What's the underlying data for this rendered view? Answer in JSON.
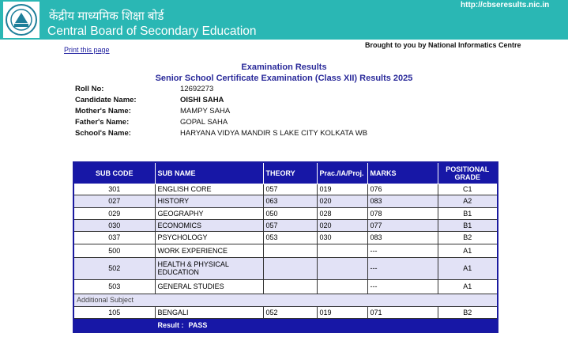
{
  "header": {
    "hindi_title": "केंद्रीय माध्यमिक शिक्षा बोर्ड",
    "title": "Central Board of Secondary Education",
    "url": "http://cbseresults.nic.in"
  },
  "print_link": "Print this page",
  "credit": "Brought to you by National Informatics Centre",
  "results": {
    "heading": "Examination Results",
    "subheading": "Senior School Certificate Examination (Class XII) Results 2025"
  },
  "student": [
    {
      "label": "Roll No:",
      "value": "12692273"
    },
    {
      "label": "Candidate Name:",
      "value": "OISHI SAHA"
    },
    {
      "label": "Mother's Name:",
      "value": "MAMPY SAHA"
    },
    {
      "label": "Father's Name:",
      "value": "GOPAL SAHA"
    },
    {
      "label": "School's Name:",
      "value": "HARYANA VIDYA MANDIR S LAKE CITY KOLKATA WB"
    }
  ],
  "table": {
    "columns": [
      "SUB CODE",
      "SUB NAME",
      "THEORY",
      "Prac./IA/Proj.",
      "MARKS",
      "POSITIONAL GRADE"
    ],
    "rows": [
      {
        "code": "301",
        "name": "ENGLISH CORE",
        "theory": "057",
        "practical": "019",
        "marks": "076",
        "grade": "C1"
      },
      {
        "code": "027",
        "name": "HISTORY",
        "theory": "063",
        "practical": "020",
        "marks": "083",
        "grade": "A2"
      },
      {
        "code": "029",
        "name": "GEOGRAPHY",
        "theory": "050",
        "practical": "028",
        "marks": "078",
        "grade": "B1"
      },
      {
        "code": "030",
        "name": "ECONOMICS",
        "theory": "057",
        "practical": "020",
        "marks": "077",
        "grade": "B1"
      },
      {
        "code": "037",
        "name": "PSYCHOLOGY",
        "theory": "053",
        "practical": "030",
        "marks": "083",
        "grade": "B2"
      },
      {
        "code": "500",
        "name": "WORK EXPERIENCE",
        "marks": "---",
        "grade": "A1"
      },
      {
        "code": "502",
        "name": "HEALTH & PHYSICAL EDUCATION",
        "marks": "---",
        "grade": "A1"
      },
      {
        "code": "503",
        "name": "GENERAL STUDIES",
        "marks": "---",
        "grade": "A1"
      }
    ],
    "additional_label": "Additional Subject",
    "additional_rows": [
      {
        "code": "105",
        "name": "BENGALI",
        "theory": "052",
        "practical": "019",
        "marks": "071",
        "grade": "B2"
      }
    ],
    "result_label": "Result :",
    "result": "PASS"
  }
}
